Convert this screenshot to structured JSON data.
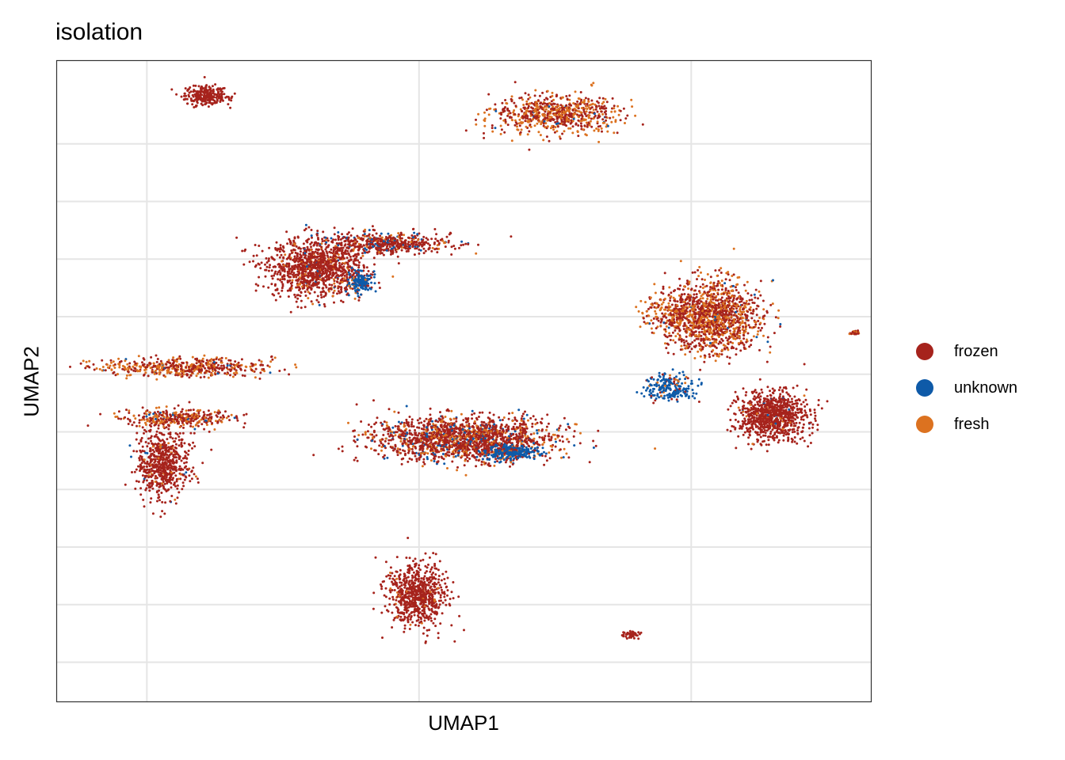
{
  "chart_data": {
    "type": "scatter",
    "title": "isolation",
    "xlabel": "UMAP1",
    "ylabel": "UMAP2",
    "xlim": [
      -1.65,
      13.3
    ],
    "ylim": [
      -14.2,
      13.6
    ],
    "grid": true,
    "legend_position": "right",
    "series": [
      {
        "name": "frozen",
        "color": "#A6231C"
      },
      {
        "name": "unknown",
        "color": "#0E5AA8"
      },
      {
        "name": "fresh",
        "color": "#DC7220"
      }
    ],
    "clusters": [
      {
        "cx": 1.1,
        "cy": 12.1,
        "rx": 0.35,
        "ry": 0.38,
        "n": 260,
        "mix": [
          1,
          0,
          0
        ]
      },
      {
        "cx": 7.5,
        "cy": 11.3,
        "rx": 1.05,
        "ry": 0.75,
        "n": 700,
        "mix": [
          0.55,
          0.03,
          0.42
        ]
      },
      {
        "cx": 3.1,
        "cy": 4.6,
        "rx": 0.78,
        "ry": 1.15,
        "n": 1100,
        "mix": [
          0.9,
          0.02,
          0.08
        ]
      },
      {
        "cx": 4.4,
        "cy": 5.7,
        "rx": 1.1,
        "ry": 0.4,
        "n": 500,
        "mix": [
          0.82,
          0.1,
          0.08
        ]
      },
      {
        "cx": 3.9,
        "cy": 4.0,
        "rx": 0.2,
        "ry": 0.4,
        "n": 160,
        "mix": [
          0.1,
          0.85,
          0.05
        ]
      },
      {
        "cx": 0.7,
        "cy": 0.3,
        "rx": 1.5,
        "ry": 0.35,
        "n": 500,
        "mix": [
          0.5,
          0.02,
          0.48
        ]
      },
      {
        "cx": 0.3,
        "cy": -3.9,
        "rx": 0.42,
        "ry": 1.4,
        "n": 650,
        "mix": [
          0.92,
          0.02,
          0.06
        ]
      },
      {
        "cx": 0.6,
        "cy": -1.9,
        "rx": 0.9,
        "ry": 0.35,
        "n": 350,
        "mix": [
          0.6,
          0.05,
          0.35
        ]
      },
      {
        "cx": 5.8,
        "cy": -2.8,
        "rx": 1.5,
        "ry": 0.85,
        "n": 1700,
        "mix": [
          0.72,
          0.1,
          0.18
        ]
      },
      {
        "cx": 6.7,
        "cy": -3.4,
        "rx": 0.45,
        "ry": 0.3,
        "n": 250,
        "mix": [
          0.1,
          0.85,
          0.05
        ]
      },
      {
        "cx": 4.95,
        "cy": -9.6,
        "rx": 0.5,
        "ry": 1.2,
        "n": 700,
        "mix": [
          0.97,
          0,
          0.03
        ]
      },
      {
        "cx": 10.4,
        "cy": 2.5,
        "rx": 0.8,
        "ry": 1.4,
        "n": 1300,
        "mix": [
          0.6,
          0.02,
          0.38
        ]
      },
      {
        "cx": 9.6,
        "cy": 2.6,
        "rx": 0.5,
        "ry": 0.8,
        "n": 150,
        "mix": [
          0.5,
          0,
          0.5
        ]
      },
      {
        "cx": 11.5,
        "cy": -1.8,
        "rx": 0.55,
        "ry": 0.95,
        "n": 900,
        "mix": [
          0.96,
          0.01,
          0.03
        ]
      },
      {
        "cx": 9.6,
        "cy": -0.6,
        "rx": 0.4,
        "ry": 0.5,
        "n": 220,
        "mix": [
          0.15,
          0.78,
          0.07
        ]
      },
      {
        "cx": 8.9,
        "cy": -11.3,
        "rx": 0.15,
        "ry": 0.15,
        "n": 40,
        "mix": [
          1,
          0,
          0
        ]
      },
      {
        "cx": 13.0,
        "cy": 1.8,
        "rx": 0.08,
        "ry": 0.08,
        "n": 25,
        "mix": [
          0.6,
          0,
          0.4
        ]
      }
    ]
  }
}
